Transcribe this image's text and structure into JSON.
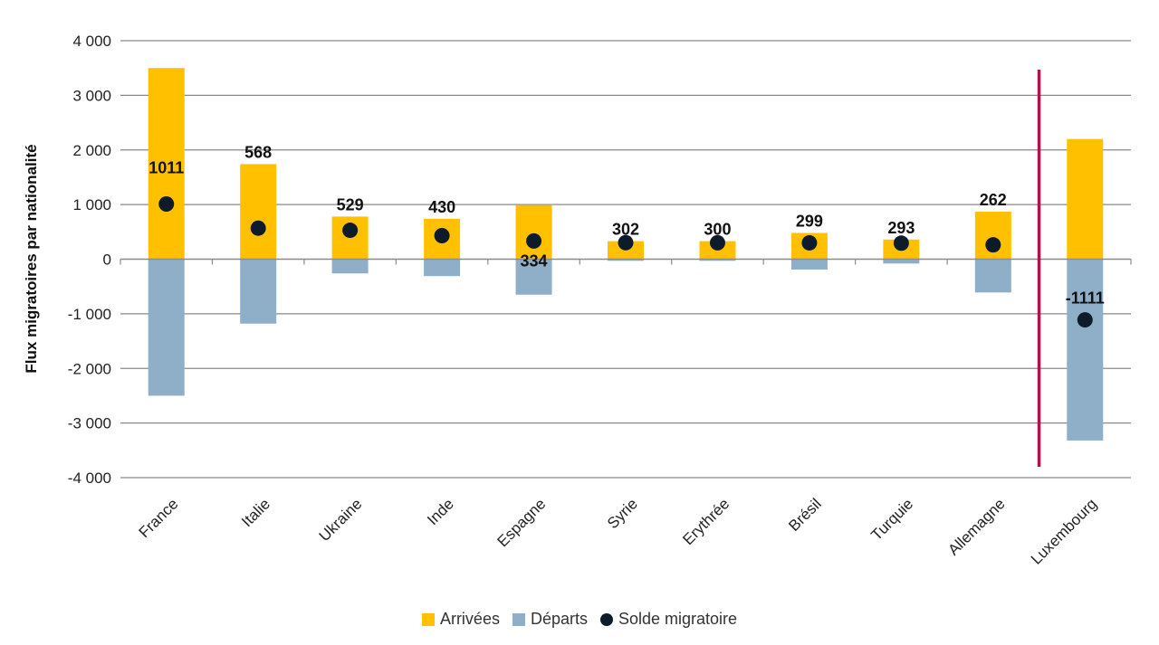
{
  "chart_data": {
    "type": "bar",
    "categories": [
      "France",
      "Italie",
      "Ukraine",
      "Inde",
      "Espagne",
      "Syrie",
      "Erythrée",
      "Brésil",
      "Turquie",
      "Allemagne",
      "Luxembourg"
    ],
    "series": [
      {
        "name": "Arrivées",
        "kind": "bar",
        "color": "#FFC000",
        "values": [
          3500,
          1740,
          780,
          740,
          990,
          330,
          330,
          480,
          360,
          870,
          2200
        ]
      },
      {
        "name": "Départs",
        "kind": "bar",
        "color": "#8FAFC9",
        "values": [
          -2500,
          -1180,
          -260,
          -310,
          -650,
          -30,
          -30,
          -190,
          -80,
          -610,
          -3320
        ]
      },
      {
        "name": "Solde migratoire",
        "kind": "dot",
        "color": "#0D1B2A",
        "values": [
          1011,
          568,
          529,
          430,
          334,
          302,
          300,
          299,
          293,
          262,
          -1111
        ]
      }
    ],
    "data_labels": [
      "1011",
      "568",
      "529",
      "430",
      "334",
      "302",
      "300",
      "299",
      "293",
      "262",
      "-1111"
    ],
    "title": "",
    "xlabel": "",
    "ylabel": "Flux migratoires par nationalité",
    "ylim": [
      -4000,
      4000
    ],
    "yticks": [
      4000,
      3000,
      2000,
      1000,
      0,
      -1000,
      -2000,
      -3000,
      -4000
    ],
    "ytick_labels": [
      "4 000",
      "3 000",
      "2 000",
      "1 000",
      "0",
      "-1 000",
      "-2 000",
      "-3 000",
      "-4 000"
    ],
    "grid": true,
    "legend_position": "bottom",
    "separator_color": "#B0124F",
    "separator_between": [
      "Allemagne",
      "Luxembourg"
    ]
  }
}
